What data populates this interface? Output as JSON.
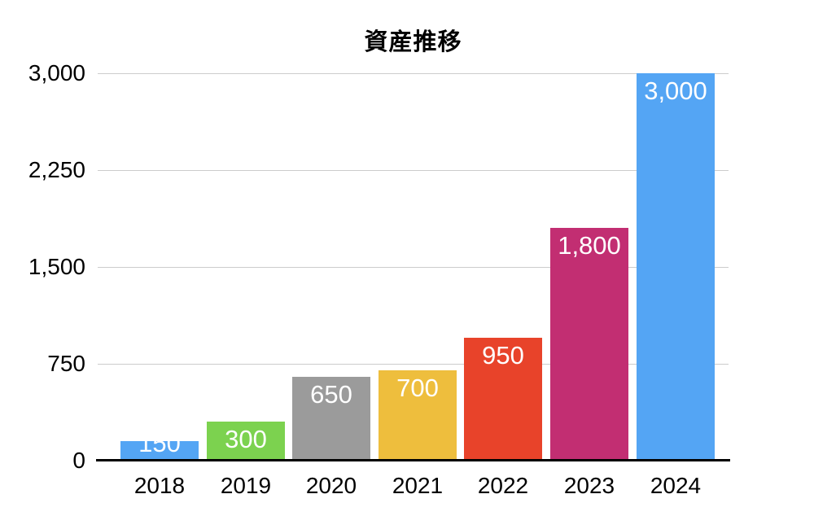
{
  "chart_data": {
    "type": "bar",
    "title": "資産推移",
    "categories": [
      "2018",
      "2019",
      "2020",
      "2021",
      "2022",
      "2023",
      "2024"
    ],
    "values": [
      150,
      300,
      650,
      700,
      950,
      1800,
      3000
    ],
    "value_labels": [
      "150",
      "300",
      "650",
      "700",
      "950",
      "1,800",
      "3,000"
    ],
    "bar_colors": [
      "#54A5F4",
      "#7CD24F",
      "#9B9B9B",
      "#EEBE3D",
      "#E8432A",
      "#C22E72",
      "#54A5F4"
    ],
    "xlabel": "",
    "ylabel": "",
    "ylim": [
      0,
      3000
    ],
    "yticks": [
      0,
      750,
      1500,
      2250,
      3000
    ],
    "ytick_labels": [
      "0",
      "750",
      "1,500",
      "2,250",
      "3,000"
    ],
    "grid": true,
    "legend": "none",
    "colors": {
      "value_label_text": "#ffffff",
      "grid_line": "#cccccc",
      "axis_line": "#000000",
      "tick_text": "#000000",
      "background": "#ffffff"
    }
  }
}
